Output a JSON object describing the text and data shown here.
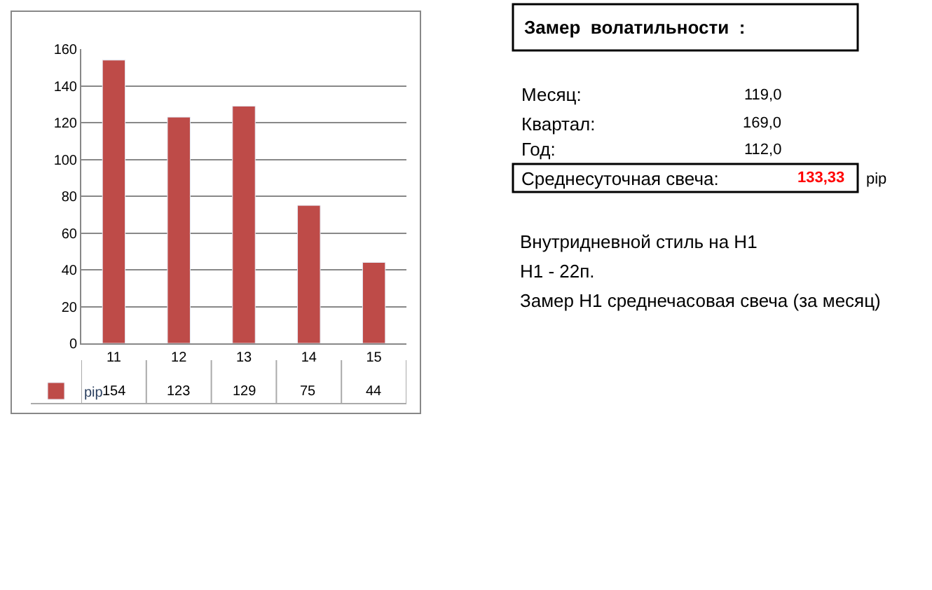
{
  "chart_data": [
    {
      "type": "bar",
      "categories": [
        "11",
        "12",
        "13",
        "14",
        "15"
      ],
      "series": [
        {
          "name": "pip",
          "color": "#be4b48",
          "values": [
            154,
            123,
            129,
            75,
            44
          ]
        }
      ],
      "ylim": [
        0,
        160
      ],
      "yticks": [
        0,
        20,
        40,
        60,
        80,
        100,
        120,
        140,
        160
      ],
      "grid": "y",
      "legend": "bottom left",
      "data_labels": true
    },
    {
      "type": "other",
      "title": "Замер  волатильности  :",
      "annotations": [
        "Месяц:",
        "119,0",
        "Квартал:",
        "169,0",
        "Год:",
        "112,0",
        "Среднесуточная свеча:",
        "133,33",
        "pip",
        "Внутридневной стиль на H1",
        "H1 - 22п.",
        "Замер H1 среднечасовая свеча (за месяц)"
      ]
    }
  ]
}
